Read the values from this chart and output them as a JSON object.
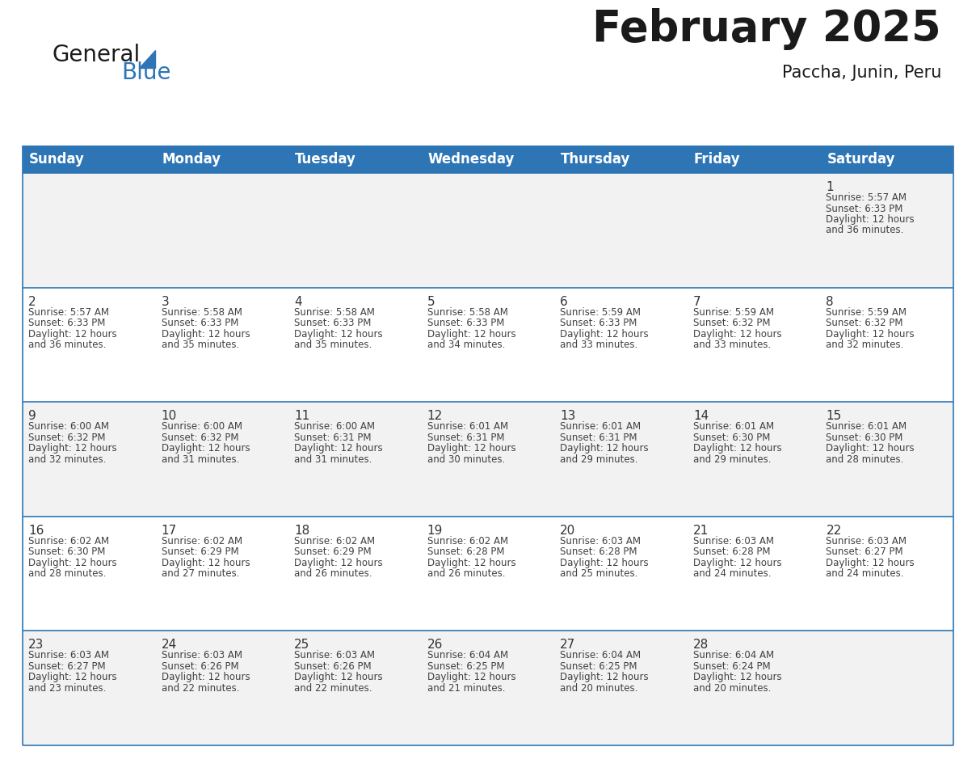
{
  "title": "February 2025",
  "subtitle": "Paccha, Junin, Peru",
  "header_bg": "#2E75B6",
  "header_text_color": "#FFFFFF",
  "row_bg_odd": "#F2F2F2",
  "row_bg_even": "#FFFFFF",
  "border_color": "#2E75B6",
  "day_number_color": "#333333",
  "info_text_color": "#404040",
  "days_of_week": [
    "Sunday",
    "Monday",
    "Tuesday",
    "Wednesday",
    "Thursday",
    "Friday",
    "Saturday"
  ],
  "weeks": [
    [
      {
        "day": "",
        "sunrise": "",
        "sunset": "",
        "daylight": ""
      },
      {
        "day": "",
        "sunrise": "",
        "sunset": "",
        "daylight": ""
      },
      {
        "day": "",
        "sunrise": "",
        "sunset": "",
        "daylight": ""
      },
      {
        "day": "",
        "sunrise": "",
        "sunset": "",
        "daylight": ""
      },
      {
        "day": "",
        "sunrise": "",
        "sunset": "",
        "daylight": ""
      },
      {
        "day": "",
        "sunrise": "",
        "sunset": "",
        "daylight": ""
      },
      {
        "day": "1",
        "sunrise": "5:57 AM",
        "sunset": "6:33 PM",
        "daylight": "36 minutes."
      }
    ],
    [
      {
        "day": "2",
        "sunrise": "5:57 AM",
        "sunset": "6:33 PM",
        "daylight": "36 minutes."
      },
      {
        "day": "3",
        "sunrise": "5:58 AM",
        "sunset": "6:33 PM",
        "daylight": "35 minutes."
      },
      {
        "day": "4",
        "sunrise": "5:58 AM",
        "sunset": "6:33 PM",
        "daylight": "35 minutes."
      },
      {
        "day": "5",
        "sunrise": "5:58 AM",
        "sunset": "6:33 PM",
        "daylight": "34 minutes."
      },
      {
        "day": "6",
        "sunrise": "5:59 AM",
        "sunset": "6:33 PM",
        "daylight": "33 minutes."
      },
      {
        "day": "7",
        "sunrise": "5:59 AM",
        "sunset": "6:32 PM",
        "daylight": "33 minutes."
      },
      {
        "day": "8",
        "sunrise": "5:59 AM",
        "sunset": "6:32 PM",
        "daylight": "32 minutes."
      }
    ],
    [
      {
        "day": "9",
        "sunrise": "6:00 AM",
        "sunset": "6:32 PM",
        "daylight": "32 minutes."
      },
      {
        "day": "10",
        "sunrise": "6:00 AM",
        "sunset": "6:32 PM",
        "daylight": "31 minutes."
      },
      {
        "day": "11",
        "sunrise": "6:00 AM",
        "sunset": "6:31 PM",
        "daylight": "31 minutes."
      },
      {
        "day": "12",
        "sunrise": "6:01 AM",
        "sunset": "6:31 PM",
        "daylight": "30 minutes."
      },
      {
        "day": "13",
        "sunrise": "6:01 AM",
        "sunset": "6:31 PM",
        "daylight": "29 minutes."
      },
      {
        "day": "14",
        "sunrise": "6:01 AM",
        "sunset": "6:30 PM",
        "daylight": "29 minutes."
      },
      {
        "day": "15",
        "sunrise": "6:01 AM",
        "sunset": "6:30 PM",
        "daylight": "28 minutes."
      }
    ],
    [
      {
        "day": "16",
        "sunrise": "6:02 AM",
        "sunset": "6:30 PM",
        "daylight": "28 minutes."
      },
      {
        "day": "17",
        "sunrise": "6:02 AM",
        "sunset": "6:29 PM",
        "daylight": "27 minutes."
      },
      {
        "day": "18",
        "sunrise": "6:02 AM",
        "sunset": "6:29 PM",
        "daylight": "26 minutes."
      },
      {
        "day": "19",
        "sunrise": "6:02 AM",
        "sunset": "6:28 PM",
        "daylight": "26 minutes."
      },
      {
        "day": "20",
        "sunrise": "6:03 AM",
        "sunset": "6:28 PM",
        "daylight": "25 minutes."
      },
      {
        "day": "21",
        "sunrise": "6:03 AM",
        "sunset": "6:28 PM",
        "daylight": "24 minutes."
      },
      {
        "day": "22",
        "sunrise": "6:03 AM",
        "sunset": "6:27 PM",
        "daylight": "24 minutes."
      }
    ],
    [
      {
        "day": "23",
        "sunrise": "6:03 AM",
        "sunset": "6:27 PM",
        "daylight": "23 minutes."
      },
      {
        "day": "24",
        "sunrise": "6:03 AM",
        "sunset": "6:26 PM",
        "daylight": "22 minutes."
      },
      {
        "day": "25",
        "sunrise": "6:03 AM",
        "sunset": "6:26 PM",
        "daylight": "22 minutes."
      },
      {
        "day": "26",
        "sunrise": "6:04 AM",
        "sunset": "6:25 PM",
        "daylight": "21 minutes."
      },
      {
        "day": "27",
        "sunrise": "6:04 AM",
        "sunset": "6:25 PM",
        "daylight": "20 minutes."
      },
      {
        "day": "28",
        "sunrise": "6:04 AM",
        "sunset": "6:24 PM",
        "daylight": "20 minutes."
      },
      {
        "day": "",
        "sunrise": "",
        "sunset": "",
        "daylight": ""
      }
    ]
  ],
  "logo_general_color": "#1a1a1a",
  "logo_blue_color": "#2E75B6",
  "title_fontsize": 38,
  "subtitle_fontsize": 15,
  "header_fontsize": 12,
  "day_num_fontsize": 11,
  "info_fontsize": 8.5
}
